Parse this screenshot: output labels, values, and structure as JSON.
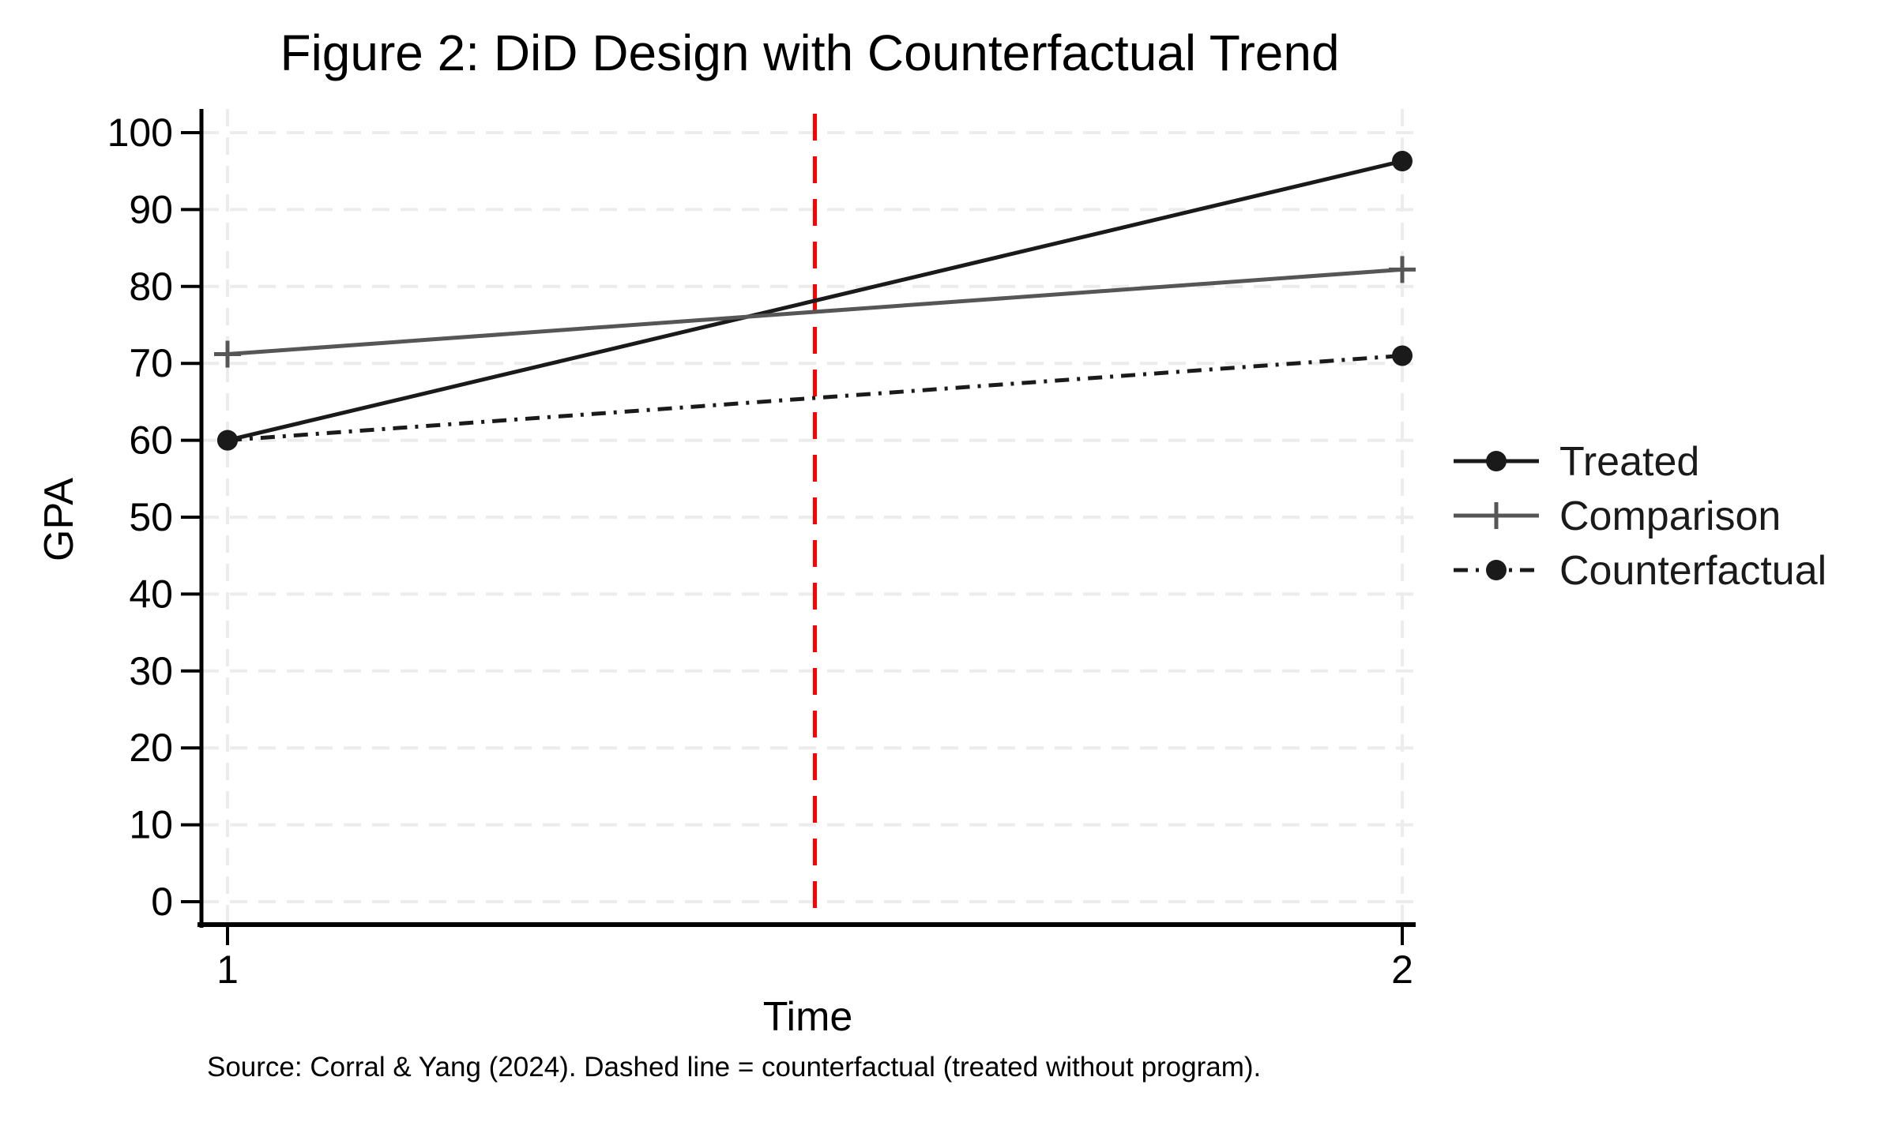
{
  "figure": {
    "source_note": "Source: Corral & Yang (2024). Dashed line = counterfactual (treated without program)."
  },
  "chart_data": {
    "type": "line",
    "title": "Figure 2: DiD Design with Counterfactual Trend",
    "xlabel": "Time",
    "ylabel": "GPA",
    "x": [
      1,
      2
    ],
    "xlim": [
      1,
      2
    ],
    "ylim": [
      0,
      100
    ],
    "x_ticks": [
      1,
      2
    ],
    "y_ticks": [
      0,
      10,
      20,
      30,
      40,
      50,
      60,
      70,
      80,
      90,
      100
    ],
    "grid": {
      "horizontal": true,
      "vertical": true,
      "style": "dashed",
      "color": "#ececec"
    },
    "series": [
      {
        "name": "Treated",
        "values": [
          60,
          96.3
        ],
        "color": "#1a1a1a",
        "line_style": "solid",
        "marker": "circle"
      },
      {
        "name": "Comparison",
        "values": [
          71.2,
          82.2
        ],
        "color": "#565656",
        "line_style": "solid",
        "marker": "plus"
      },
      {
        "name": "Counterfactual",
        "values": [
          60,
          71
        ],
        "color": "#1a1a1a",
        "line_style": "dash-dot",
        "marker": "circle"
      }
    ],
    "reference_line": {
      "axis": "x",
      "value": 1.5,
      "color": "#fe0000",
      "style": "dashed"
    },
    "legend": {
      "position": "right",
      "entries": [
        "Treated",
        "Comparison",
        "Counterfactual"
      ]
    }
  }
}
